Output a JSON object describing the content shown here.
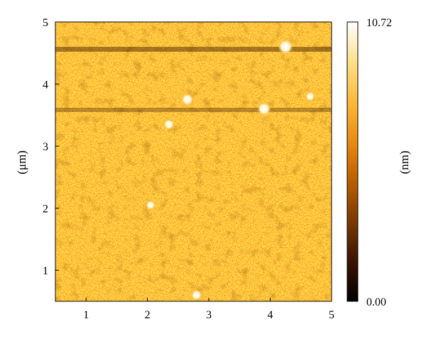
{
  "figure": {
    "y_axis_label": "(μm)",
    "x_ticks": [
      "1",
      "2",
      "3",
      "4",
      "5"
    ],
    "y_ticks": [
      "1",
      "2",
      "3",
      "4",
      "5"
    ],
    "colorbar": {
      "max_label": "10.72",
      "min_label": "0.00",
      "unit_label": "(nm)",
      "colors": [
        "#000000",
        "#3a1400",
        "#7a3a00",
        "#b95e00",
        "#ea8a10",
        "#fbb93a",
        "#ffe08a",
        "#ffffff"
      ]
    }
  },
  "chart_data": {
    "type": "heatmap",
    "x_range": [
      0.5,
      5
    ],
    "y_range": [
      0.5,
      5
    ],
    "z_range": [
      0.0,
      10.72
    ],
    "ylabel": "(μm)",
    "colorbar_label": "(nm)",
    "features": [
      {
        "type": "particle",
        "x": 4.25,
        "y": 4.6
      },
      {
        "type": "particle",
        "x": 2.65,
        "y": 3.75
      },
      {
        "type": "particle",
        "x": 3.9,
        "y": 3.6
      },
      {
        "type": "particle",
        "x": 4.65,
        "y": 3.8
      },
      {
        "type": "particle",
        "x": 2.35,
        "y": 3.35
      },
      {
        "type": "particle",
        "x": 2.05,
        "y": 2.05
      },
      {
        "type": "particle",
        "x": 2.8,
        "y": 0.6
      }
    ]
  }
}
